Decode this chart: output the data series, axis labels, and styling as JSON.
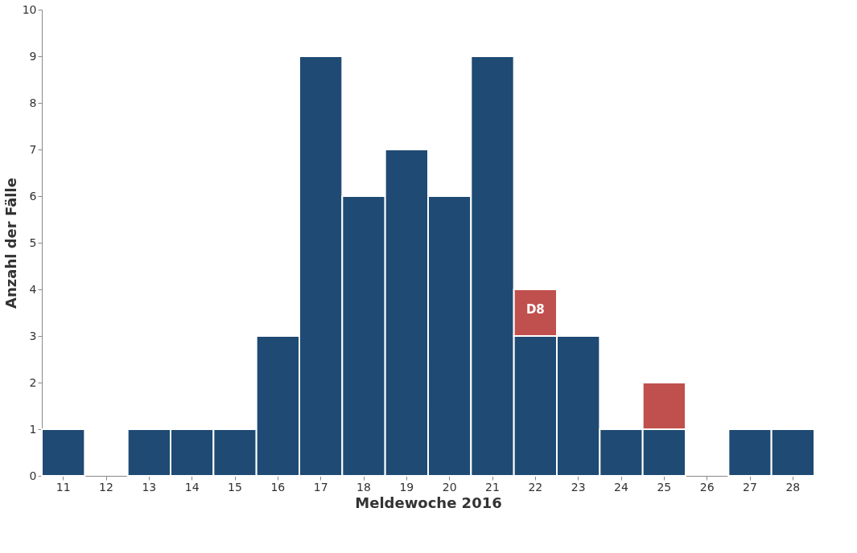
{
  "chart_data": {
    "type": "bar",
    "stacked": true,
    "xlabel": "Meldewoche 2016",
    "ylabel": "Anzahl der Fälle",
    "categories": [
      "11",
      "12",
      "13",
      "14",
      "15",
      "16",
      "17",
      "18",
      "19",
      "20",
      "21",
      "22",
      "23",
      "24",
      "25",
      "26",
      "27",
      "28"
    ],
    "series": [
      {
        "color": "#1f4a73",
        "values": [
          1,
          0,
          1,
          1,
          1,
          3,
          9,
          6,
          7,
          6,
          9,
          3,
          3,
          1,
          1,
          0,
          1,
          1
        ]
      },
      {
        "color": "#c0504d",
        "values": [
          null,
          null,
          null,
          null,
          null,
          null,
          null,
          null,
          null,
          null,
          null,
          1,
          null,
          null,
          1,
          null,
          null,
          null
        ]
      }
    ],
    "ylim": [
      0,
      10
    ],
    "yticks": [
      0,
      1,
      2,
      3,
      4,
      5,
      6,
      7,
      8,
      9,
      10
    ],
    "grid": false,
    "legend": false,
    "annotations": [
      {
        "text": "D8",
        "x": "22",
        "y": 4
      }
    ]
  }
}
